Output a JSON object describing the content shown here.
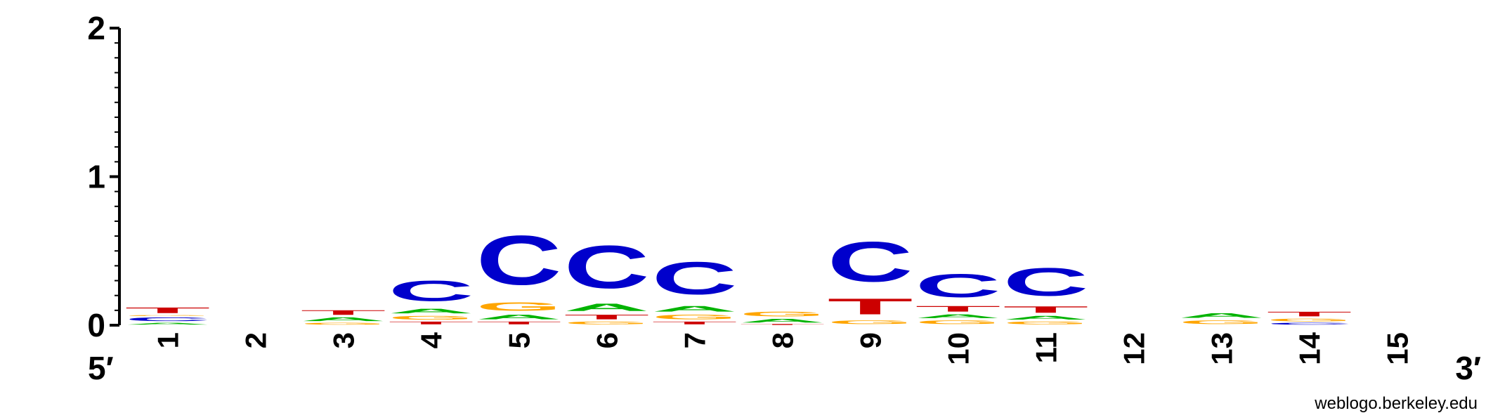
{
  "chart_data": {
    "type": "sequence-logo",
    "ylim": [
      0,
      2
    ],
    "yticks": [
      "0",
      "1",
      "2"
    ],
    "end_labels": {
      "left": "5′",
      "right": "3′"
    },
    "credit": "weblogo.berkeley.edu",
    "colors": {
      "A": "#00b300",
      "C": "#0000cc",
      "G": "#ffa500",
      "T": "#cc0000"
    },
    "positions": [
      {
        "label": "1",
        "stack": [
          [
            "A",
            0.02
          ],
          [
            "C",
            0.04
          ],
          [
            "G",
            0.01
          ],
          [
            "T",
            0.06
          ]
        ]
      },
      {
        "label": "2",
        "stack": []
      },
      {
        "label": "3",
        "stack": [
          [
            "G",
            0.02
          ],
          [
            "A",
            0.04
          ],
          [
            "T",
            0.05
          ]
        ]
      },
      {
        "label": "4",
        "stack": [
          [
            "T",
            0.03
          ],
          [
            "G",
            0.04
          ],
          [
            "A",
            0.05
          ],
          [
            "C",
            0.22
          ]
        ]
      },
      {
        "label": "5",
        "stack": [
          [
            "T",
            0.03
          ],
          [
            "A",
            0.05
          ],
          [
            "G",
            0.09
          ],
          [
            "C",
            0.53
          ]
        ]
      },
      {
        "label": "6",
        "stack": [
          [
            "G",
            0.03
          ],
          [
            "T",
            0.05
          ],
          [
            "A",
            0.08
          ],
          [
            "C",
            0.46
          ]
        ]
      },
      {
        "label": "7",
        "stack": [
          [
            "T",
            0.03
          ],
          [
            "G",
            0.05
          ],
          [
            "A",
            0.06
          ],
          [
            "C",
            0.35
          ]
        ]
      },
      {
        "label": "8",
        "stack": [
          [
            "T",
            0.01
          ],
          [
            "A",
            0.04
          ],
          [
            "G",
            0.05
          ]
        ]
      },
      {
        "label": "9",
        "stack": [
          [
            "G",
            0.04
          ],
          [
            "T",
            0.17
          ],
          [
            "C",
            0.43
          ]
        ]
      },
      {
        "label": "10",
        "stack": [
          [
            "G",
            0.04
          ],
          [
            "A",
            0.04
          ],
          [
            "T",
            0.06
          ],
          [
            "C",
            0.25
          ]
        ]
      },
      {
        "label": "11",
        "stack": [
          [
            "G",
            0.03
          ],
          [
            "A",
            0.04
          ],
          [
            "T",
            0.07
          ],
          [
            "C",
            0.3
          ]
        ]
      },
      {
        "label": "12",
        "stack": []
      },
      {
        "label": "13",
        "stack": [
          [
            "G",
            0.04
          ],
          [
            "A",
            0.05
          ]
        ]
      },
      {
        "label": "14",
        "stack": [
          [
            "C",
            0.02
          ],
          [
            "G",
            0.03
          ],
          [
            "T",
            0.05
          ]
        ]
      },
      {
        "label": "15",
        "stack": []
      }
    ]
  }
}
